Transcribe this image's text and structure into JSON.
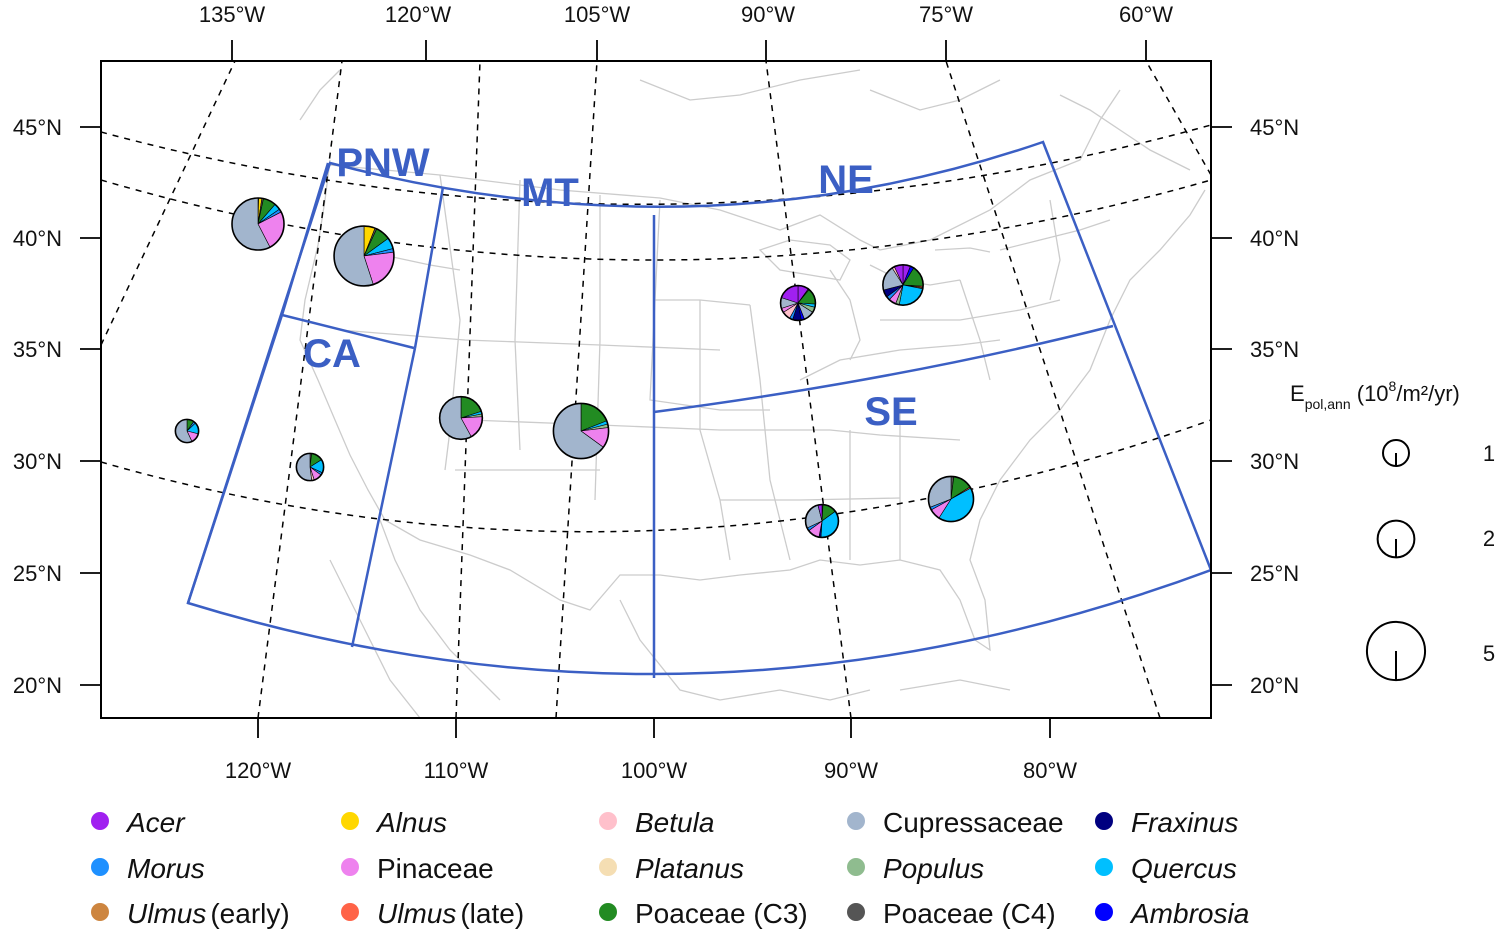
{
  "top_longitudes": [
    "135°W",
    "120°W",
    "105°W",
    "90°W",
    "75°W",
    "60°W"
  ],
  "bottom_longitudes": [
    "120°W",
    "110°W",
    "100°W",
    "90°W",
    "80°W"
  ],
  "left_latitudes": [
    "45°N",
    "40°N",
    "35°N",
    "30°N",
    "25°N",
    "20°N"
  ],
  "right_latitudes": [
    "45°N",
    "40°N",
    "35°N",
    "30°N",
    "25°N",
    "20°N"
  ],
  "regions": {
    "pnw": "PNW",
    "mt": "MT",
    "ne": "NE",
    "ca": "CA",
    "se": "SE"
  },
  "scale": {
    "title_main": "E",
    "title_sub": "pol,ann",
    "title_unit_prefix": " (10",
    "title_unit_exp": "8",
    "title_unit_suffix": "/m²/yr)",
    "values": [
      "1",
      "2",
      "5"
    ]
  },
  "colors": {
    "acer": "#a020f0",
    "alnus": "#ffd700",
    "betula": "#ffc0cb",
    "cupressaceae": "#a2b5cd",
    "fraxinus": "#000080",
    "morus": "#1e90ff",
    "pinaceae": "#ee82ee",
    "platanus": "#f5deb3",
    "populus": "#8fbc8f",
    "quercus": "#00bfff",
    "ulmus_early": "#cd853f",
    "ulmus_late": "#ff6347",
    "poaceae_c3": "#228b22",
    "poaceae_c4": "#555555",
    "ambrosia": "#0000ff",
    "region_line": "#3b5fc4",
    "state_line": "#c8c8c8"
  },
  "legend": [
    {
      "key": "acer",
      "name": "Acer",
      "italic": true,
      "suffix": ""
    },
    {
      "key": "alnus",
      "name": "Alnus",
      "italic": true,
      "suffix": ""
    },
    {
      "key": "betula",
      "name": "Betula",
      "italic": true,
      "suffix": ""
    },
    {
      "key": "cupressaceae",
      "name": "Cupressaceae",
      "italic": false,
      "suffix": ""
    },
    {
      "key": "fraxinus",
      "name": "Fraxinus",
      "italic": true,
      "suffix": ""
    },
    {
      "key": "morus",
      "name": "Morus",
      "italic": true,
      "suffix": ""
    },
    {
      "key": "pinaceae",
      "name": "Pinaceae",
      "italic": false,
      "suffix": ""
    },
    {
      "key": "platanus",
      "name": "Platanus",
      "italic": true,
      "suffix": ""
    },
    {
      "key": "populus",
      "name": "Populus",
      "italic": true,
      "suffix": ""
    },
    {
      "key": "quercus",
      "name": "Quercus",
      "italic": true,
      "suffix": ""
    },
    {
      "key": "ulmus_early",
      "name": "Ulmus",
      "italic": true,
      "suffix": "(early)"
    },
    {
      "key": "ulmus_late",
      "name": "Ulmus",
      "italic": true,
      "suffix": "(late)"
    },
    {
      "key": "poaceae_c3",
      "name": "Poaceae (C3)",
      "italic": false,
      "suffix": ""
    },
    {
      "key": "poaceae_c4",
      "name": "Poaceae (C4)",
      "italic": false,
      "suffix": ""
    },
    {
      "key": "ambrosia",
      "name": "Ambrosia",
      "italic": true,
      "suffix": ""
    }
  ],
  "pies": [
    {
      "region": "pnw",
      "emission": 4.0,
      "slices": [
        [
          "acer",
          0.4
        ],
        [
          "alnus",
          2
        ],
        [
          "poaceae_c4",
          1
        ],
        [
          "poaceae_c3",
          8
        ],
        [
          "quercus",
          4
        ],
        [
          "morus",
          2
        ],
        [
          "pinaceae",
          25
        ],
        [
          "cupressaceae",
          57.6
        ]
      ]
    },
    {
      "region": "pnw",
      "emission": 5.3,
      "slices": [
        [
          "alnus",
          6
        ],
        [
          "poaceae_c4",
          1
        ],
        [
          "poaceae_c3",
          8
        ],
        [
          "quercus",
          6
        ],
        [
          "morus",
          2
        ],
        [
          "pinaceae",
          22
        ],
        [
          "cupressaceae",
          55
        ]
      ]
    },
    {
      "region": "ca",
      "emission": 0.8,
      "slices": [
        [
          "poaceae_c3",
          10
        ],
        [
          "morus",
          3
        ],
        [
          "quercus",
          16
        ],
        [
          "pinaceae",
          14
        ],
        [
          "cupressaceae",
          57
        ]
      ]
    },
    {
      "region": "ca",
      "emission": 1.1,
      "slices": [
        [
          "poaceae_c4",
          2
        ],
        [
          "poaceae_c3",
          14
        ],
        [
          "quercus",
          16
        ],
        [
          "morus",
          3
        ],
        [
          "pinaceae",
          10
        ],
        [
          "betula",
          3
        ],
        [
          "cupressaceae",
          52
        ]
      ]
    },
    {
      "region": "mt",
      "emission": 2.7,
      "slices": [
        [
          "poaceae_c3",
          20
        ],
        [
          "quercus",
          2
        ],
        [
          "populus",
          2
        ],
        [
          "pinaceae",
          18
        ],
        [
          "cupressaceae",
          58
        ]
      ]
    },
    {
      "region": "mt",
      "emission": 4.5,
      "slices": [
        [
          "poaceae_c3",
          19
        ],
        [
          "quercus",
          2
        ],
        [
          "populus",
          2
        ],
        [
          "pinaceae",
          12
        ],
        [
          "cupressaceae",
          65
        ]
      ]
    },
    {
      "region": "ne",
      "emission": 1.8,
      "slices": [
        [
          "acer",
          10
        ],
        [
          "poaceae_c4",
          1
        ],
        [
          "poaceae_c3",
          15
        ],
        [
          "quercus",
          3
        ],
        [
          "populus",
          5
        ],
        [
          "cupressaceae",
          10
        ],
        [
          "ambrosia",
          3
        ],
        [
          "fraxinus",
          8
        ],
        [
          "morus",
          3
        ],
        [
          "betula",
          8
        ],
        [
          "pinaceae",
          4
        ],
        [
          "cupressaceae",
          10
        ],
        [
          "acer",
          20
        ]
      ]
    },
    {
      "region": "ne",
      "emission": 2.4,
      "slices": [
        [
          "acer",
          6
        ],
        [
          "ambrosia",
          3
        ],
        [
          "poaceae_c3",
          17
        ],
        [
          "ulmus_late",
          1
        ],
        [
          "ulmus_early",
          1
        ],
        [
          "quercus",
          25
        ],
        [
          "populus",
          3
        ],
        [
          "pinaceae",
          6
        ],
        [
          "morus",
          3
        ],
        [
          "fraxinus",
          6
        ],
        [
          "cupressaceae",
          20
        ],
        [
          "betula",
          2
        ],
        [
          "acer",
          7
        ]
      ]
    },
    {
      "region": "se",
      "emission": 1.6,
      "slices": [
        [
          "poaceae_c4",
          1
        ],
        [
          "poaceae_c3",
          14
        ],
        [
          "quercus",
          36
        ],
        [
          "fraxinus",
          2
        ],
        [
          "pinaceae",
          12
        ],
        [
          "morus",
          3
        ],
        [
          "cupressaceae",
          28
        ],
        [
          "acer",
          4
        ]
      ]
    },
    {
      "region": "se",
      "emission": 3.0,
      "slices": [
        [
          "poaceae_c4",
          2
        ],
        [
          "poaceae_c3",
          14
        ],
        [
          "ulmus_late",
          1
        ],
        [
          "quercus",
          42
        ],
        [
          "pinaceae",
          8
        ],
        [
          "morus",
          2
        ],
        [
          "cupressaceae",
          31
        ]
      ]
    }
  ]
}
